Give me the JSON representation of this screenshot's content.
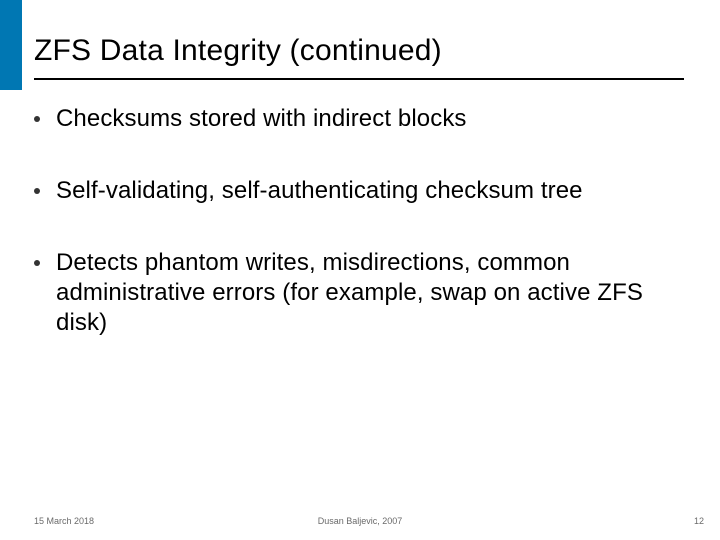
{
  "accent_color": "#0077b3",
  "title": "ZFS Data Integrity (continued)",
  "bullets": [
    "Checksums stored with indirect blocks",
    "Self-validating, self-authenticating checksum tree",
    "Detects phantom writes, misdirections, common administrative errors (for example, swap on active ZFS disk)"
  ],
  "footer": {
    "date": "15 March 2018",
    "author": "Dusan Baljevic, 2007",
    "page": "12"
  },
  "typography": {
    "title_fontsize": 30,
    "bullet_fontsize": 24,
    "footer_fontsize": 9,
    "text_color": "#000000",
    "footer_color": "#6a6a6a"
  }
}
